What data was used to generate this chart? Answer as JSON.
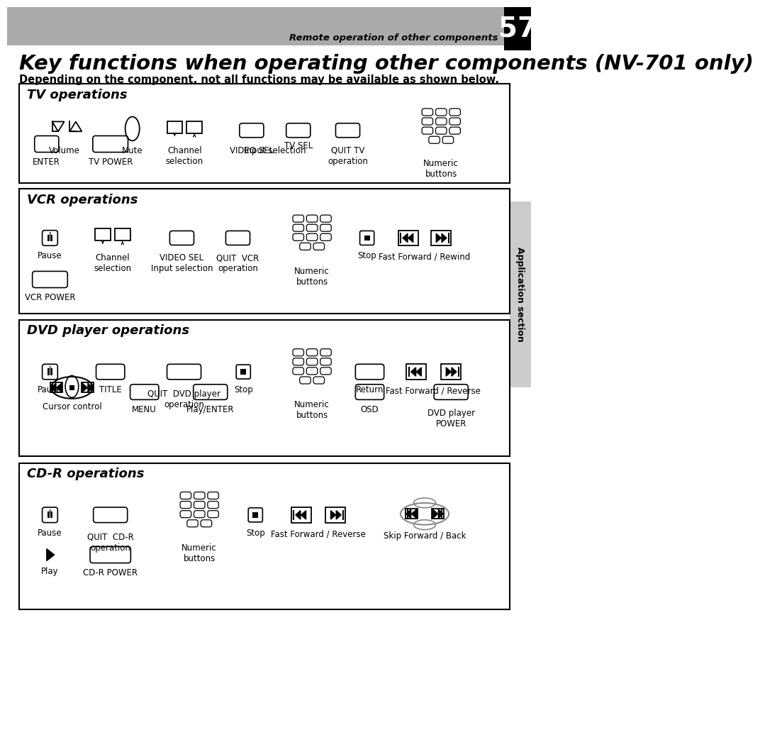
{
  "page_bg": "#ffffff",
  "header_bg": "#aaaaaa",
  "header_text": "Remote operation of other components",
  "page_num": "57",
  "main_title": "Key functions when operating other components (NV-701 only)",
  "subtitle": "Depending on the component, not all functions may be available as shown below.",
  "sidebar_text": "Application section",
  "sidebar_color": "#cccccc"
}
